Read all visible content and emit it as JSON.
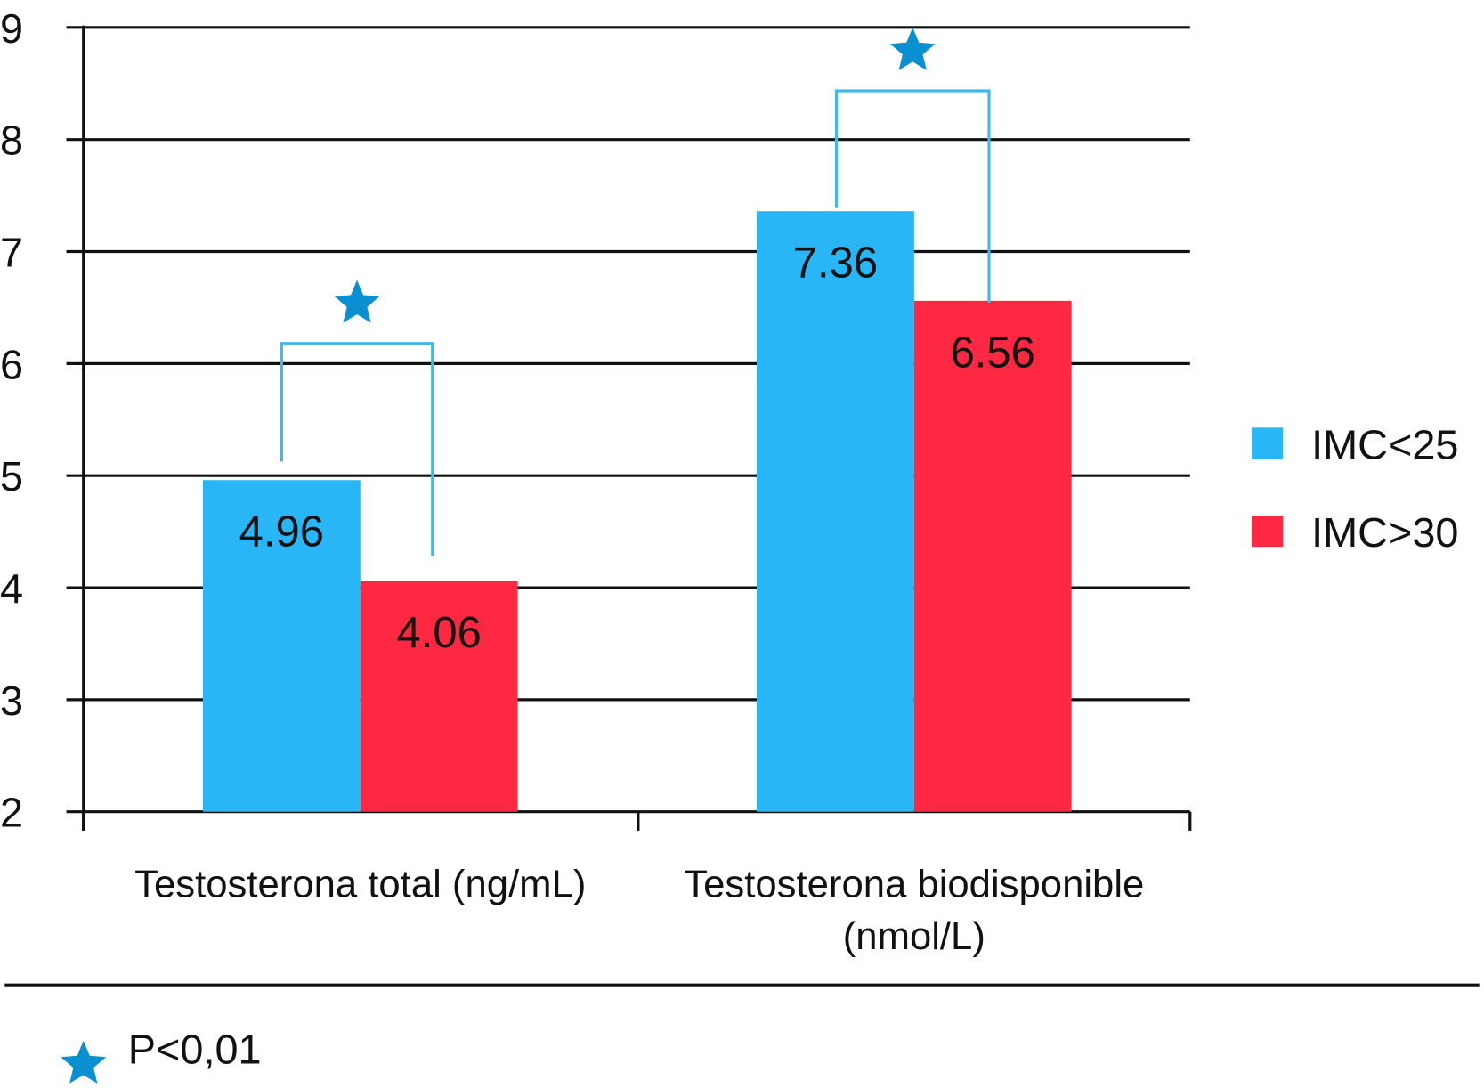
{
  "chart_data": {
    "type": "bar",
    "categories": [
      "Testosterona total (ng/mL)",
      "Testosterona biodisponible (nmol/L)"
    ],
    "category_lines": [
      [
        "Testosterona total (ng/mL)"
      ],
      [
        "Testosterona biodisponible",
        "(nmol/L)"
      ]
    ],
    "series": [
      {
        "name": "IMC<25",
        "values": [
          4.96,
          7.36
        ],
        "labels": [
          "4.96",
          "7.36"
        ],
        "color": "#29b6f6"
      },
      {
        "name": "IMC>30",
        "values": [
          4.06,
          6.56
        ],
        "labels": [
          "4.06",
          "6.56"
        ],
        "color": "#ff2842"
      }
    ],
    "ylim": [
      2,
      9
    ],
    "yticks": [
      2,
      3,
      4,
      5,
      6,
      7,
      8,
      9
    ],
    "grid": true,
    "legend_position": "right",
    "significance": {
      "marker": "star-icon",
      "color": "#0a8fd0",
      "bracket_color": "#45b9e6",
      "note": "P<0,01"
    }
  }
}
